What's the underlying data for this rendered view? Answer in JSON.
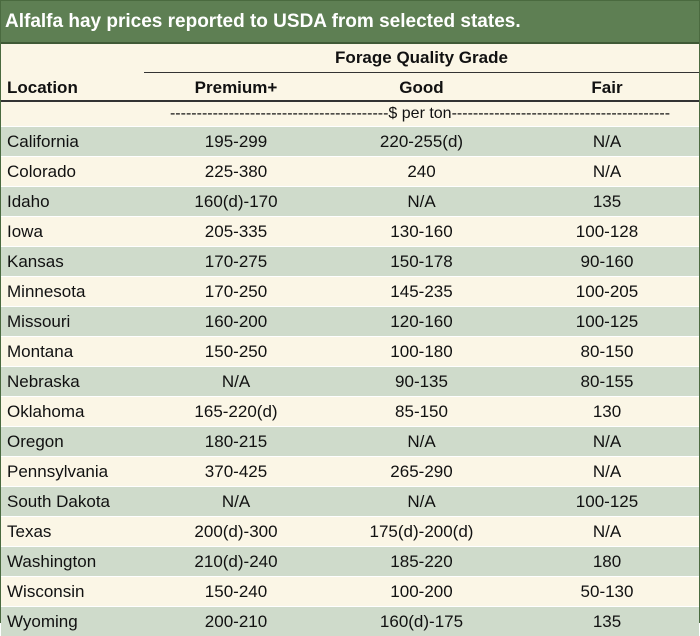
{
  "title": "Alfalfa hay prices reported to USDA from selected states.",
  "group_header": "Forage Quality Grade",
  "columns": {
    "location": "Location",
    "premium": "Premium+",
    "good": "Good",
    "fair": "Fair"
  },
  "unit_label": "-----------------------------------------$ per ton-----------------------------------------",
  "rows": [
    {
      "location": "California",
      "premium": "195-299",
      "good": "220-255(d)",
      "fair": "N/A"
    },
    {
      "location": "Colorado",
      "premium": "225-380",
      "good": "240",
      "fair": "N/A"
    },
    {
      "location": "Idaho",
      "premium": "160(d)-170",
      "good": "N/A",
      "fair": "135"
    },
    {
      "location": "Iowa",
      "premium": "205-335",
      "good": "130-160",
      "fair": "100-128"
    },
    {
      "location": "Kansas",
      "premium": "170-275",
      "good": "150-178",
      "fair": "90-160"
    },
    {
      "location": "Minnesota",
      "premium": "170-250",
      "good": "145-235",
      "fair": "100-205"
    },
    {
      "location": "Missouri",
      "premium": "160-200",
      "good": "120-160",
      "fair": "100-125"
    },
    {
      "location": "Montana",
      "premium": "150-250",
      "good": "100-180",
      "fair": "80-150"
    },
    {
      "location": "Nebraska",
      "premium": "N/A",
      "good": "90-135",
      "fair": "80-155"
    },
    {
      "location": "Oklahoma",
      "premium": "165-220(d)",
      "good": "85-150",
      "fair": "130"
    },
    {
      "location": "Oregon",
      "premium": "180-215",
      "good": "N/A",
      "fair": "N/A"
    },
    {
      "location": "Pennsylvania",
      "premium": "370-425",
      "good": "265-290",
      "fair": "N/A"
    },
    {
      "location": "South Dakota",
      "premium": "N/A",
      "good": "N/A",
      "fair": "100-125"
    },
    {
      "location": "Texas",
      "premium": "200(d)-300",
      "good": "175(d)-200(d)",
      "fair": "N/A"
    },
    {
      "location": "Washington",
      "premium": "210(d)-240",
      "good": "185-220",
      "fair": "180"
    },
    {
      "location": "Wisconsin",
      "premium": "150-240",
      "good": "100-200",
      "fair": "50-130"
    },
    {
      "location": "Wyoming",
      "premium": "200-210",
      "good": "160(d)-175",
      "fair": "135"
    }
  ],
  "colors": {
    "title_bg": "#5e7f53",
    "row_alt": "#cfdbcb",
    "row_plain": "#fbf6e6"
  }
}
